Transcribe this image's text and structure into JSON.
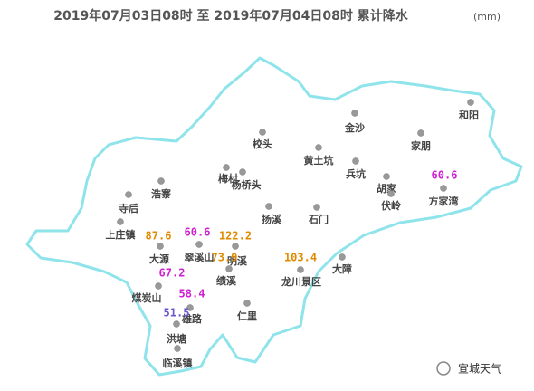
{
  "header": {
    "title": "2019年07月03日08时  至  2019年07月04日08时  累计降水",
    "unit": "(mm)"
  },
  "stations": [
    "和阳",
    "金沙",
    "家朋",
    "校头",
    "黄土坑",
    "兵坑",
    "梅村",
    "杨桥头",
    "胡家",
    "伏岭",
    "方家湾",
    "浩寨",
    "寺后",
    "上庄镇",
    "扬溪",
    "石门",
    "大源",
    "翠溪山",
    "明溪",
    "绩溪",
    "龙川景区",
    "大障",
    "煤炭山",
    "雄路",
    "仁里",
    "洪塘",
    "临溪镇"
  ],
  "rainfall": [
    {
      "value": 87.6,
      "color": "#e08a00"
    },
    {
      "value": 60.6,
      "color": "#d020d0"
    },
    {
      "value": 122.2,
      "color": "#e08a00"
    },
    {
      "value": 73.9,
      "color": "#e08a00"
    },
    {
      "value": 103.4,
      "color": "#e08a00"
    },
    {
      "value": 60.6,
      "color": "#d020d0"
    },
    {
      "value": 67.2,
      "color": "#d020d0"
    },
    {
      "value": 58.4,
      "color": "#d020d0"
    },
    {
      "value": 51.5,
      "color": "#6a5acd"
    }
  ],
  "watermark": "宣城天气"
}
